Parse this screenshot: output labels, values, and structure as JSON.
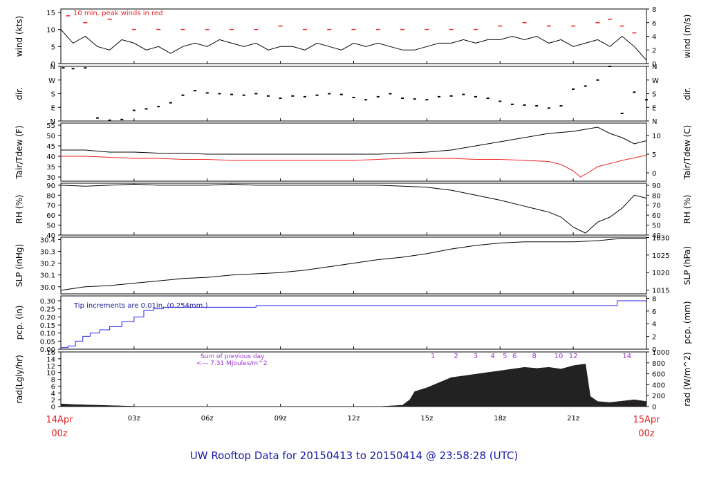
{
  "chart_data": {
    "type": "line",
    "title": "UW Rooftop Data for 20150413  to  20150414 @ 23:58:28  (UTC)",
    "x_tick_labels": [
      "03z",
      "06z",
      "09z",
      "12z",
      "15z",
      "18z",
      "21z"
    ],
    "x_start": {
      "day": "14Apr",
      "hour": "00z"
    },
    "x_end": {
      "day": "15Apr",
      "hour": "00z"
    },
    "x_range_hours": [
      0,
      24
    ],
    "colors": {
      "default": "#000000",
      "red": "#ee2222",
      "blue": "#2222ee",
      "annotation": "#9933cc",
      "footer": "#1a1aa6",
      "axis_red": "#dd2222"
    },
    "panels": [
      {
        "id": "wind",
        "ylabel_left": "wind (kts)",
        "ylabel_right": "wind (m/s)",
        "ylim": [
          0,
          16
        ],
        "yticks_left": [
          0,
          5,
          10,
          15
        ],
        "ylim_right": [
          0,
          8
        ],
        "yticks_right": [
          0,
          2,
          4,
          6,
          8
        ],
        "annotation": "10 min. peak winds in red",
        "series": [
          {
            "style": "line",
            "color": "#000000",
            "x": [
              0,
              0.5,
              1,
              1.5,
              2,
              2.5,
              3,
              3.5,
              4,
              4.5,
              5,
              5.5,
              6,
              6.5,
              7,
              7.5,
              8,
              8.5,
              9,
              9.5,
              10,
              10.5,
              11,
              11.5,
              12,
              12.5,
              13,
              13.5,
              14,
              14.5,
              15,
              15.5,
              16,
              16.5,
              17,
              17.5,
              18,
              18.5,
              19,
              19.5,
              20,
              20.5,
              21,
              21.5,
              22,
              22.5,
              23,
              23.5,
              24
            ],
            "y": [
              10,
              6,
              8,
              5,
              4,
              7,
              6,
              4,
              5,
              3,
              5,
              6,
              5,
              7,
              6,
              5,
              6,
              4,
              5,
              5,
              4,
              6,
              5,
              4,
              6,
              5,
              6,
              5,
              4,
              4,
              5,
              6,
              6,
              7,
              6,
              7,
              7,
              8,
              7,
              8,
              6,
              7,
              5,
              6,
              7,
              5,
              8,
              5,
              1
            ]
          },
          {
            "style": "dashes",
            "color": "#ee2222",
            "x": [
              0.3,
              1,
              2,
              3,
              4,
              5,
              6,
              7,
              8,
              9,
              10,
              11,
              12,
              13,
              14,
              15,
              16,
              17,
              18,
              19,
              20,
              21,
              22,
              22.5,
              23,
              23.5
            ],
            "y": [
              14,
              12,
              13,
              10,
              10,
              10,
              10,
              10,
              10,
              11,
              10,
              10,
              10,
              10,
              10,
              10,
              10,
              10,
              11,
              12,
              11,
              11,
              12,
              13,
              11,
              9
            ]
          }
        ]
      },
      {
        "id": "dir",
        "ylabel_left": "dir.",
        "ylabel_right": "dir.",
        "ylim": [
          0,
          360
        ],
        "ytick_values": [
          0,
          90,
          180,
          270,
          360
        ],
        "yticks_left": [
          "N",
          "E",
          "S",
          "W",
          "N"
        ],
        "yticks_right": [
          "N",
          "E",
          "S",
          "W",
          "N"
        ],
        "series": [
          {
            "style": "points",
            "color": "#000000",
            "x": [
              0.1,
              0.5,
              1,
              1.5,
              2,
              2.5,
              3,
              3.5,
              4,
              4.5,
              5,
              5.5,
              6,
              6.5,
              7,
              7.5,
              8,
              8.5,
              9,
              9.5,
              10,
              10.5,
              11,
              11.5,
              12,
              12.5,
              13,
              13.5,
              14,
              14.5,
              15,
              15.5,
              16,
              16.5,
              17,
              17.5,
              18,
              18.5,
              19,
              19.5,
              20,
              20.5,
              21,
              21.5,
              22,
              22.5,
              23,
              23.5,
              24
            ],
            "y": [
              350,
              345,
              350,
              20,
              5,
              10,
              70,
              80,
              95,
              120,
              170,
              200,
              185,
              180,
              175,
              170,
              180,
              165,
              150,
              165,
              160,
              170,
              180,
              175,
              155,
              140,
              160,
              180,
              150,
              145,
              140,
              160,
              165,
              175,
              160,
              150,
              130,
              110,
              105,
              100,
              85,
              100,
              210,
              230,
              270,
              360,
              50,
              190,
              140
            ]
          }
        ]
      },
      {
        "id": "temp",
        "ylabel_left": "Tair/Tdew (F)",
        "ylabel_right": "Tair/Tdew (C)",
        "ylim": [
          28,
          56
        ],
        "yticks_left": [
          30,
          35,
          40,
          45,
          50,
          55
        ],
        "ylim_right": [
          -2.22,
          13.33
        ],
        "yticks_right": [
          0,
          5,
          10
        ],
        "series": [
          {
            "name": "Tair",
            "style": "line",
            "color": "#000000",
            "x": [
              0,
              1,
              2,
              3,
              4,
              5,
              6,
              7,
              8,
              9,
              10,
              11,
              12,
              13,
              14,
              15,
              16,
              17,
              18,
              19,
              20,
              21,
              21.5,
              22,
              22.5,
              23,
              23.5,
              24
            ],
            "y": [
              43,
              43,
              42,
              42,
              41.5,
              41.5,
              41,
              41,
              41,
              41,
              41,
              41,
              41,
              41,
              41.5,
              42,
              43,
              45,
              47,
              49,
              51,
              52,
              53,
              54,
              51,
              49,
              46,
              47.5
            ]
          },
          {
            "name": "Tdew",
            "style": "line",
            "color": "#ee2222",
            "x": [
              0,
              1,
              2,
              3,
              4,
              5,
              6,
              7,
              8,
              9,
              10,
              11,
              12,
              13,
              14,
              15,
              16,
              17,
              18,
              19,
              20,
              20.5,
              21,
              21.3,
              21.6,
              22,
              23,
              24
            ],
            "y": [
              40,
              40,
              39.5,
              39,
              39,
              38.5,
              38.5,
              38,
              38,
              38,
              38,
              38,
              38,
              38.5,
              39,
              39,
              39,
              38.5,
              38.5,
              38,
              37.5,
              36,
              33,
              30,
              32,
              35,
              38,
              40.5
            ]
          }
        ]
      },
      {
        "id": "rh",
        "ylabel_left": "RH (%)",
        "ylabel_right": "RH (%)",
        "ylim": [
          40,
          92
        ],
        "yticks_left": [
          40,
          50,
          60,
          70,
          80,
          90
        ],
        "yticks_right": [
          40,
          50,
          60,
          70,
          80,
          90
        ],
        "series": [
          {
            "style": "line",
            "color": "#000000",
            "x": [
              0,
              1,
              2,
              3,
              4,
              5,
              6,
              7,
              8,
              9,
              10,
              11,
              12,
              13,
              14,
              15,
              16,
              17,
              18,
              19,
              20,
              20.5,
              21,
              21.5,
              22,
              22.5,
              23,
              23.5,
              24
            ],
            "y": [
              90,
              89,
              90,
              91,
              90,
              90,
              90,
              91,
              90,
              90,
              90,
              90,
              90,
              90,
              89,
              88,
              85,
              80,
              75,
              69,
              63,
              58,
              48,
              42,
              53,
              58,
              67,
              80,
              77
            ]
          }
        ]
      },
      {
        "id": "slp",
        "ylabel_left": "SLP (inHg)",
        "ylabel_right": "SLP (hPa)",
        "ylim": [
          29.94,
          30.42
        ],
        "yticks_left": [
          30.0,
          30.1,
          30.2,
          30.3,
          30.4
        ],
        "ylim_right": [
          1013.9,
          1030.1
        ],
        "yticks_right": [
          1015,
          1020,
          1025,
          1030
        ],
        "series": [
          {
            "style": "line",
            "color": "#000000",
            "x": [
              0,
              1,
              2,
              3,
              4,
              5,
              6,
              7,
              8,
              9,
              10,
              11,
              12,
              13,
              14,
              15,
              16,
              17,
              18,
              19,
              20,
              21,
              22,
              23,
              24
            ],
            "y": [
              29.97,
              30.0,
              30.01,
              30.03,
              30.05,
              30.07,
              30.08,
              30.1,
              30.11,
              30.12,
              30.14,
              30.17,
              30.2,
              30.23,
              30.25,
              30.28,
              30.32,
              30.35,
              30.37,
              30.38,
              30.38,
              30.38,
              30.39,
              30.41,
              30.41
            ]
          }
        ]
      },
      {
        "id": "pcp",
        "ylabel_left": "pcp. (in)",
        "ylabel_right": "pcp. (mm)",
        "ylim": [
          0,
          0.33
        ],
        "yticks_left": [
          0.0,
          0.05,
          0.1,
          0.15,
          0.2,
          0.25,
          0.3
        ],
        "ylim_right": [
          0,
          8.38
        ],
        "yticks_right": [
          0,
          2,
          4,
          6,
          8
        ],
        "annotation": "Tip increments are 0.01in. (0.254mm.)",
        "series": [
          {
            "style": "step",
            "color": "#2222ee",
            "x": [
              0,
              0.3,
              0.6,
              0.9,
              1.2,
              1.6,
              2,
              2.5,
              3,
              3.4,
              3.8,
              4.2,
              8,
              22.5,
              22.8,
              24
            ],
            "y": [
              0.01,
              0.02,
              0.05,
              0.08,
              0.1,
              0.12,
              0.14,
              0.17,
              0.2,
              0.24,
              0.25,
              0.26,
              0.27,
              0.27,
              0.3,
              0.3
            ]
          }
        ]
      },
      {
        "id": "rad",
        "ylabel_left": "rad(Lgly/hr)",
        "ylabel_right": "rad (W/m^2)",
        "ylim": [
          0,
          16
        ],
        "yticks_left": [
          0,
          2,
          4,
          6,
          8,
          10,
          12,
          14,
          16
        ],
        "ylim_right": [
          0,
          1000
        ],
        "yticks_right": [
          0,
          200,
          400,
          600,
          800,
          1000
        ],
        "annotation_lines": [
          "Sum of previous day",
          "<--- 7.31 MJoules/m^2"
        ],
        "hour_labels": [
          {
            "x": 15.25,
            "label": "1"
          },
          {
            "x": 16.2,
            "label": "2"
          },
          {
            "x": 17.0,
            "label": "3"
          },
          {
            "x": 17.7,
            "label": "4"
          },
          {
            "x": 18.2,
            "label": "5"
          },
          {
            "x": 18.6,
            "label": "6"
          },
          {
            "x": 19.4,
            "label": "8"
          },
          {
            "x": 20.4,
            "label": "10"
          },
          {
            "x": 21.0,
            "label": "12"
          },
          {
            "x": 23.2,
            "label": "14"
          }
        ],
        "series": [
          {
            "style": "area",
            "color": "#222222",
            "x": [
              0,
              0.5,
              1,
              1.5,
              2,
              2.5,
              3,
              3.2,
              13,
              14,
              14.3,
              14.5,
              15,
              15.5,
              16,
              16.5,
              17,
              17.5,
              18,
              18.5,
              19,
              19.5,
              20,
              20.5,
              21,
              21.5,
              21.7,
              22,
              22.5,
              23,
              23.5,
              24
            ],
            "y": [
              0.8,
              0.6,
              0.5,
              0.4,
              0.3,
              0.2,
              0.1,
              0,
              0,
              0.4,
              2,
              4.4,
              5.5,
              7,
              8.5,
              9,
              9.5,
              10,
              10.5,
              11,
              11.5,
              11.2,
              11.5,
              11,
              12,
              12.5,
              3,
              1.5,
              1.2,
              1.6,
              2,
              1.5
            ]
          }
        ]
      }
    ]
  }
}
